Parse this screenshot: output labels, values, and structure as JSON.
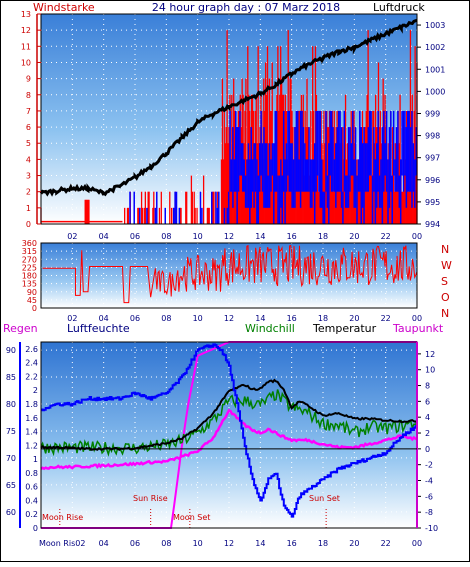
{
  "panel_top": {
    "title": "24 hour graph day : 07 Marz 2018",
    "left_label": "Windstarke",
    "right_label": "Luftdruck"
  },
  "panel_dir": {
    "compass": [
      "N",
      "W",
      "S",
      "O",
      "N"
    ]
  },
  "panel_bottom": {
    "labels": {
      "regen": "Regen",
      "luftfeuchte": "Luftfeuchte",
      "windchill": "Windchill",
      "temperatur": "Temperatur",
      "taupunkt": "Taupunkt"
    },
    "events": [
      {
        "label": "Moon Rise",
        "hour": 1.2
      },
      {
        "label": "Sun Rise",
        "hour": 7.0
      },
      {
        "label": "Moon Set",
        "hour": 9.5
      },
      {
        "label": "Sun Set",
        "hour": 18.2
      }
    ],
    "moon_rise_axis_label": "Moon Ris02"
  },
  "colors": {
    "wind": "#ff0000",
    "gust_band": "#0000ff",
    "pressure": "#000000",
    "humidity": "#0000ff",
    "temperature": "#000000",
    "windchill": "#008000",
    "dewpoint": "#ff00ff",
    "rain": "#ff00ff",
    "axis_left_top": "#cc0000",
    "axis_right_top": "#000080",
    "axis_left_bottom_humidity": "#000080",
    "axis_right_bottom": "#000080"
  },
  "chart_data": [
    {
      "type": "line",
      "name": "wind-pressure",
      "x_ticks": [
        "02",
        "04",
        "06",
        "08",
        "10",
        "12",
        "14",
        "16",
        "18",
        "20",
        "22",
        "00"
      ],
      "ylim_left": [
        0,
        13
      ],
      "yticks_left": [
        0,
        1,
        2,
        3,
        4,
        5,
        6,
        7,
        8,
        9,
        10,
        11,
        12,
        13
      ],
      "ylim_right": [
        994,
        1003.5
      ],
      "yticks_right": [
        994,
        995,
        996,
        997,
        998,
        999,
        1000,
        1001,
        1002,
        1003
      ],
      "pressure": {
        "x": [
          0,
          1,
          2,
          3,
          4,
          5,
          6,
          7,
          8,
          9,
          10,
          11,
          12,
          13,
          14,
          15,
          16,
          17,
          18,
          19,
          20,
          21,
          22,
          23,
          24
        ],
        "y": [
          995.4,
          995.5,
          995.6,
          995.6,
          995.4,
          995.7,
          996.1,
          996.6,
          997.2,
          997.9,
          998.6,
          999.0,
          999.3,
          999.6,
          999.9,
          1000.3,
          1000.8,
          1001.2,
          1001.5,
          1001.8,
          1002.0,
          1002.3,
          1002.6,
          1002.9,
          1003.2
        ]
      },
      "wind_mean_note_hours": [
        13,
        16.5
      ]
    },
    {
      "type": "scatter",
      "name": "wind-direction",
      "ylim": [
        0,
        360
      ],
      "yticks": [
        0,
        45,
        90,
        135,
        180,
        225,
        270,
        315,
        360
      ],
      "x_ticks": [
        "02",
        "04",
        "06",
        "08",
        "10",
        "12",
        "14",
        "16",
        "18",
        "20",
        "22",
        "00"
      ]
    },
    {
      "type": "line",
      "name": "humidity-temperature",
      "x_ticks": [
        "Moon Ris02",
        "04",
        "06",
        "08",
        "10",
        "12",
        "14",
        "16",
        "18",
        "20",
        "22",
        "00"
      ],
      "ylim_humidity": [
        57,
        91.5
      ],
      "yticks_humidity": [
        60,
        65,
        70,
        75,
        80,
        85,
        90
      ],
      "ylim_rain": [
        0,
        2.7
      ],
      "yticks_rain": [
        0,
        0.2,
        0.4,
        0.6,
        0.8,
        1,
        1.2,
        1.4,
        1.6,
        1.8,
        2,
        2.2,
        2.4,
        2.6
      ],
      "ylim_temp": [
        -10,
        13.5
      ],
      "yticks_temp": [
        -10,
        -8,
        -6,
        -4,
        -2,
        0,
        2,
        4,
        6,
        8,
        10,
        12
      ],
      "humidity": {
        "x": [
          0,
          1,
          2,
          3,
          4,
          5,
          6,
          7,
          8,
          9,
          10,
          11,
          11.5,
          12,
          12.5,
          13,
          13.5,
          14,
          14.5,
          15,
          15.5,
          16,
          16.5,
          17,
          18,
          19,
          20,
          21,
          22,
          23,
          24
        ],
        "y": [
          79,
          80,
          80,
          81,
          81,
          81,
          82,
          81,
          82,
          85,
          90,
          91,
          90,
          87,
          80,
          72,
          66,
          62,
          66,
          67,
          61,
          59,
          63,
          64,
          66,
          68,
          69,
          70,
          71,
          74,
          76
        ]
      },
      "temperature": {
        "x": [
          0,
          1,
          2,
          3,
          4,
          5,
          6,
          7,
          8,
          9,
          10,
          11,
          12,
          13,
          13.5,
          14,
          14.5,
          15,
          15.5,
          16,
          16.5,
          17,
          18,
          19,
          20,
          21,
          22,
          23,
          24
        ],
        "y": [
          0.2,
          0.2,
          0.1,
          0,
          0,
          0,
          0.1,
          0.4,
          0.7,
          1.3,
          2.6,
          4.5,
          7.3,
          8.1,
          7.5,
          7.6,
          8.5,
          8.6,
          7.5,
          5.2,
          6.0,
          5.5,
          4.2,
          4.5,
          3.8,
          3.8,
          3.6,
          3.5,
          3.5
        ]
      },
      "windchill": {
        "x": [
          0,
          6,
          8,
          9,
          10,
          11,
          12,
          13,
          14,
          15,
          16,
          17,
          18,
          19,
          20,
          21,
          22,
          23,
          24
        ],
        "y": [
          0.2,
          0.1,
          0.5,
          1.0,
          2.0,
          3.6,
          6.0,
          6.1,
          5.5,
          6.9,
          5.2,
          4.6,
          3.2,
          3.0,
          2.0,
          2.8,
          2.6,
          2.9,
          3.3
        ]
      },
      "dewpoint": {
        "x": [
          0,
          1,
          2,
          3,
          4,
          5,
          6,
          7,
          8,
          9,
          10,
          11,
          11.5,
          12,
          12.5,
          13,
          13.5,
          14,
          14.5,
          15,
          15.5,
          16,
          17,
          18,
          19,
          20,
          21,
          22,
          23,
          24
        ],
        "y": [
          -2.4,
          -2.3,
          -2.3,
          -2.2,
          -2.1,
          -2.0,
          -1.9,
          -1.7,
          -1.6,
          -1.0,
          -0.3,
          1.4,
          3.2,
          4.8,
          3.9,
          3.0,
          2.4,
          2.0,
          2.5,
          2.0,
          1.5,
          1.1,
          1.1,
          0.6,
          0.2,
          0.2,
          0.6,
          1.1,
          1.6,
          1.2
        ]
      },
      "rain": {
        "x": [
          0,
          8.3,
          8.6,
          9.0,
          9.4,
          10.0,
          10.5,
          11.0,
          11.5,
          12,
          24
        ],
        "y": [
          0,
          0,
          0.5,
          1.2,
          1.8,
          2.5,
          2.55,
          2.6,
          2.65,
          2.7,
          2.7
        ]
      }
    }
  ]
}
